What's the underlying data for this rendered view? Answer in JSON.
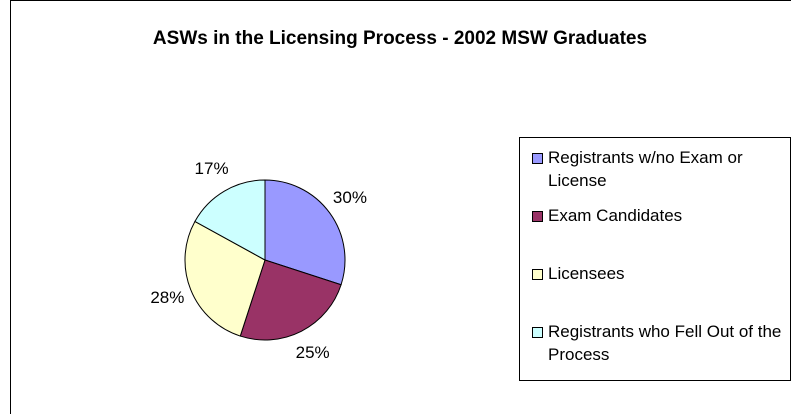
{
  "chart_data": {
    "type": "pie",
    "title": "ASWs in the Licensing Process - 2002 MSW Graduates",
    "categories": [
      "Registrants w/no Exam or License",
      "Exam Candidates",
      "Licensees",
      "Registrants who Fell Out of the Process"
    ],
    "values": [
      30,
      25,
      28,
      17
    ],
    "value_labels": [
      "30%",
      "25%",
      "28%",
      "17%"
    ],
    "colors": [
      "#9999ff",
      "#993366",
      "#ffffcc",
      "#ccffff"
    ],
    "legend": "right"
  }
}
